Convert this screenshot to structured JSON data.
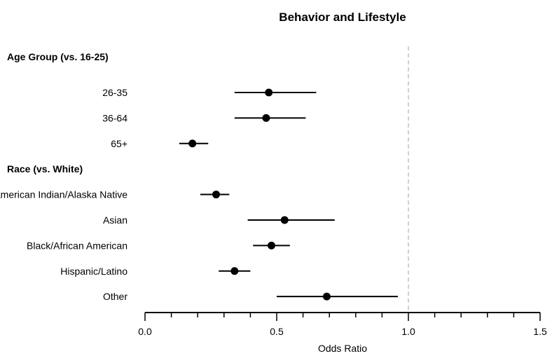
{
  "chart_data": {
    "type": "forest",
    "title": "Behavior and Lifestyle",
    "xlabel": "Odds Ratio",
    "xlim": [
      0.0,
      1.5
    ],
    "xticks": [
      "0.0",
      "0.5",
      "1.0",
      "1.5"
    ],
    "minor_tick_step": 0.1,
    "reference_line": 1.0,
    "groups": [
      {
        "label": "Age Group (vs. 16-25)",
        "rows": [
          {
            "label": "26-35",
            "estimate": 0.47,
            "lower": 0.34,
            "upper": 0.65
          },
          {
            "label": "36-64",
            "estimate": 0.46,
            "lower": 0.34,
            "upper": 0.61
          },
          {
            "label": "65+",
            "estimate": 0.18,
            "lower": 0.13,
            "upper": 0.24
          }
        ]
      },
      {
        "label": "Race (vs. White)",
        "rows": [
          {
            "label": "American Indian/Alaska Native",
            "estimate": 0.27,
            "lower": 0.21,
            "upper": 0.32
          },
          {
            "label": "Asian",
            "estimate": 0.53,
            "lower": 0.39,
            "upper": 0.72
          },
          {
            "label": "Black/African American",
            "estimate": 0.48,
            "lower": 0.41,
            "upper": 0.55
          },
          {
            "label": "Hispanic/Latino",
            "estimate": 0.34,
            "lower": 0.28,
            "upper": 0.4
          },
          {
            "label": "Other",
            "estimate": 0.69,
            "lower": 0.5,
            "upper": 0.96
          }
        ]
      }
    ],
    "colors": {
      "marker": "#000000",
      "reference_line": "#c0c0c0",
      "axis": "#000000"
    }
  }
}
